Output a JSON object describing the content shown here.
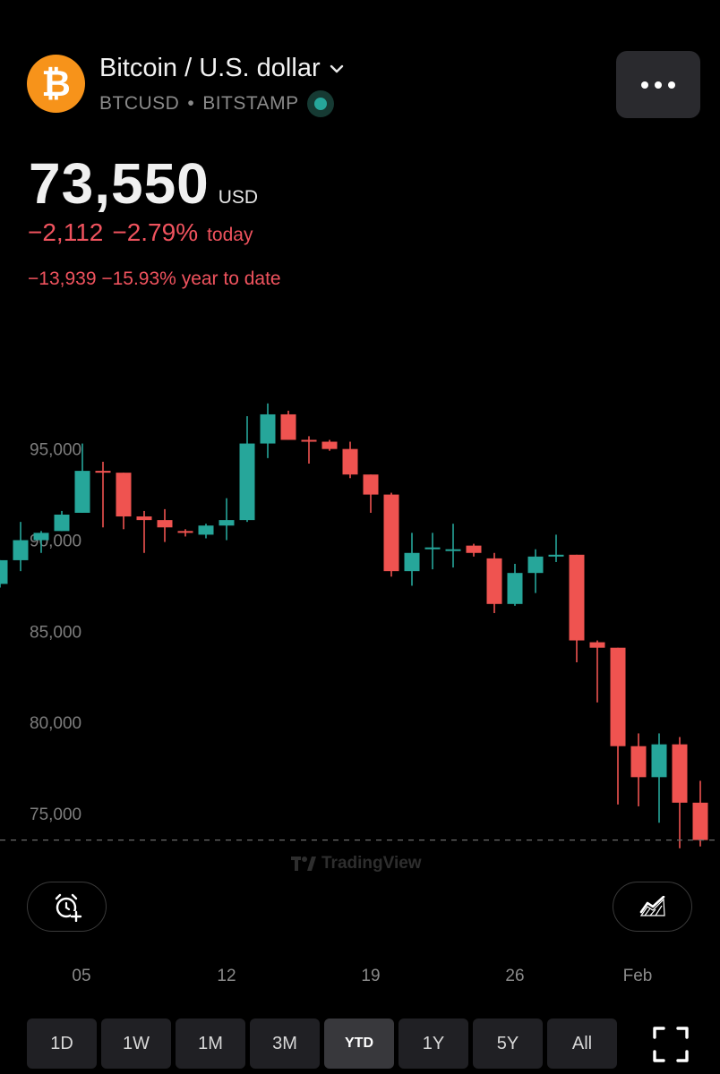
{
  "header": {
    "logo_symbol": "₿",
    "title": "Bitcoin / U.S. dollar",
    "ticker": "BTCUSD",
    "separator": "•",
    "exchange": "BITSTAMP"
  },
  "quote": {
    "price": "73,550",
    "currency": "USD",
    "change_abs": "−2,112",
    "change_pct": "−2.79%",
    "change_period": "today",
    "ytd_change_abs": "−13,939",
    "ytd_change_pct": "−15.93%",
    "ytd_label": "year to date"
  },
  "colors": {
    "up": "#26a69a",
    "down": "#ef5350",
    "background": "#000000",
    "grid_text": "#7d7d7d",
    "accent": "#f7931a"
  },
  "watermark": {
    "text": "TradingView"
  },
  "x_axis_labels": [
    "05",
    "12",
    "19",
    "26",
    "Feb"
  ],
  "range_tabs": {
    "items": [
      "1D",
      "1W",
      "1M",
      "3M",
      "YTD",
      "1Y",
      "5Y",
      "All"
    ],
    "selected": "YTD"
  },
  "icons": {
    "more": "more-horizontal-icon",
    "alarm": "alarm-add-icon",
    "compare": "chart-compare-icon",
    "fullscreen": "fullscreen-icon",
    "dropdown": "chevron-down-icon"
  },
  "chart_data": {
    "type": "candlestick",
    "ylim": [
      72500,
      99500
    ],
    "yticks": [
      95000,
      90000,
      85000,
      80000,
      75000
    ],
    "ytick_labels": [
      "95,000",
      "90,000",
      "85,000",
      "80,000",
      "75,000"
    ],
    "last_price_line": 73550,
    "x_labels": [
      "05",
      "12",
      "19",
      "26",
      "Feb"
    ],
    "candles": [
      {
        "o": 87600,
        "h": 88900,
        "l": 87400,
        "c": 88900
      },
      {
        "o": 88900,
        "h": 91000,
        "l": 88300,
        "c": 90000
      },
      {
        "o": 90000,
        "h": 90500,
        "l": 89300,
        "c": 90400
      },
      {
        "o": 90500,
        "h": 91600,
        "l": 90500,
        "c": 91400
      },
      {
        "o": 91500,
        "h": 95300,
        "l": 91500,
        "c": 93800
      },
      {
        "o": 93800,
        "h": 94300,
        "l": 90700,
        "c": 93700
      },
      {
        "o": 93700,
        "h": 93700,
        "l": 90600,
        "c": 91300
      },
      {
        "o": 91300,
        "h": 91600,
        "l": 89300,
        "c": 91100
      },
      {
        "o": 91100,
        "h": 91700,
        "l": 89900,
        "c": 90700
      },
      {
        "o": 90500,
        "h": 90600,
        "l": 90200,
        "c": 90400
      },
      {
        "o": 90300,
        "h": 90900,
        "l": 90100,
        "c": 90800
      },
      {
        "o": 90800,
        "h": 92300,
        "l": 90000,
        "c": 91100
      },
      {
        "o": 91100,
        "h": 96800,
        "l": 91000,
        "c": 95300
      },
      {
        "o": 95300,
        "h": 97500,
        "l": 94500,
        "c": 96900
      },
      {
        "o": 96900,
        "h": 97100,
        "l": 95500,
        "c": 95500
      },
      {
        "o": 95500,
        "h": 95700,
        "l": 94200,
        "c": 95400
      },
      {
        "o": 95400,
        "h": 95500,
        "l": 94900,
        "c": 95000
      },
      {
        "o": 95000,
        "h": 95400,
        "l": 93400,
        "c": 93600
      },
      {
        "o": 93600,
        "h": 93600,
        "l": 91500,
        "c": 92500
      },
      {
        "o": 92500,
        "h": 92600,
        "l": 88000,
        "c": 88300
      },
      {
        "o": 88300,
        "h": 90400,
        "l": 87500,
        "c": 89300
      },
      {
        "o": 89500,
        "h": 90400,
        "l": 88400,
        "c": 89600
      },
      {
        "o": 89500,
        "h": 90900,
        "l": 88500,
        "c": 89500
      },
      {
        "o": 89700,
        "h": 89800,
        "l": 89100,
        "c": 89300
      },
      {
        "o": 89000,
        "h": 89300,
        "l": 86000,
        "c": 86500
      },
      {
        "o": 86500,
        "h": 88700,
        "l": 86400,
        "c": 88200
      },
      {
        "o": 88200,
        "h": 89500,
        "l": 87100,
        "c": 89100
      },
      {
        "o": 89100,
        "h": 90300,
        "l": 88800,
        "c": 89200
      },
      {
        "o": 89200,
        "h": 89200,
        "l": 83300,
        "c": 84500
      },
      {
        "o": 84400,
        "h": 84500,
        "l": 81100,
        "c": 84100
      },
      {
        "o": 84100,
        "h": 84100,
        "l": 75500,
        "c": 78700
      },
      {
        "o": 78700,
        "h": 79400,
        "l": 75400,
        "c": 77000
      },
      {
        "o": 77000,
        "h": 79400,
        "l": 74500,
        "c": 78800
      },
      {
        "o": 78800,
        "h": 79200,
        "l": 73100,
        "c": 75600
      },
      {
        "o": 75600,
        "h": 76800,
        "l": 73200,
        "c": 73550
      }
    ]
  }
}
